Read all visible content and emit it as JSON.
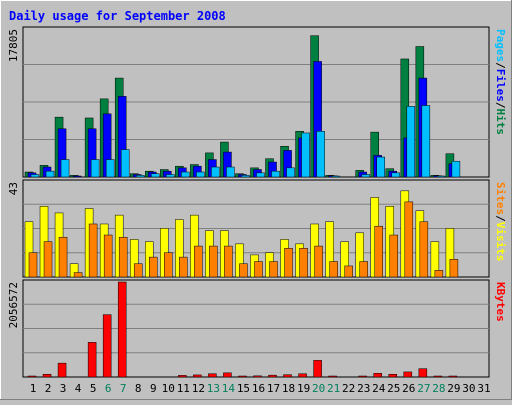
{
  "chart_data": {
    "type": "bar",
    "title": "Daily usage for September 2008",
    "categories": [
      "1",
      "2",
      "3",
      "4",
      "5",
      "6",
      "7",
      "8",
      "9",
      "10",
      "11",
      "12",
      "13",
      "14",
      "15",
      "16",
      "17",
      "18",
      "19",
      "20",
      "21",
      "22",
      "23",
      "24",
      "25",
      "26",
      "27",
      "28",
      "29",
      "30",
      "31"
    ],
    "weekend_days": [
      "6",
      "7",
      "13",
      "14",
      "20",
      "21",
      "27",
      "28"
    ],
    "panels": [
      {
        "id": "hits-files-pages",
        "ymax_label": "17805",
        "ylim": [
          0,
          17805
        ],
        "axis_label_parts": [
          {
            "text": "Pages",
            "color": "#00c0ff"
          },
          {
            "text": "/",
            "color": "#000000"
          },
          {
            "text": "Files",
            "color": "#0000ff"
          },
          {
            "text": "/",
            "color": "#000000"
          },
          {
            "text": "Hits",
            "color": "#008040"
          }
        ],
        "series": [
          {
            "name": "Hits",
            "color": "#008040",
            "values": [
              600,
              1400,
              7200,
              200,
              7100,
              9400,
              11900,
              400,
              700,
              900,
              1300,
              1500,
              2900,
              4200,
              400,
              1100,
              2200,
              3700,
              5500,
              17000,
              200,
              0,
              800,
              5400,
              1000,
              14200,
              15700,
              200,
              2800,
              0,
              0
            ]
          },
          {
            "name": "Files",
            "color": "#0000ff",
            "values": [
              500,
              1200,
              5800,
              100,
              5800,
              7600,
              9700,
              300,
              600,
              700,
              1100,
              1300,
              2100,
              3000,
              300,
              900,
              1800,
              3200,
              4700,
              13900,
              150,
              0,
              600,
              2600,
              700,
              4700,
              11900,
              150,
              1600,
              0,
              0
            ]
          },
          {
            "name": "Pages",
            "color": "#00c0ff",
            "values": [
              300,
              700,
              2100,
              0,
              2100,
              2100,
              3300,
              200,
              400,
              300,
              600,
              600,
              1200,
              1200,
              200,
              500,
              700,
              1100,
              5300,
              5500,
              100,
              0,
              300,
              2400,
              500,
              8500,
              8600,
              100,
              1900,
              0,
              0
            ]
          }
        ]
      },
      {
        "id": "visits-sites",
        "ymax_label": "43",
        "ylim": [
          0,
          43
        ],
        "axis_label_parts": [
          {
            "text": "Sites",
            "color": "#ff8000"
          },
          {
            "text": "/",
            "color": "#000000"
          },
          {
            "text": "Visits",
            "color": "#ffff00"
          }
        ],
        "series": [
          {
            "name": "Visits",
            "color": "#ffff00",
            "values": [
              25,
              32,
              29,
              6,
              31,
              24,
              28,
              17,
              16,
              22,
              26,
              28,
              21,
              21,
              15,
              10,
              11,
              17,
              15,
              24,
              25,
              16,
              20,
              36,
              32,
              39,
              30,
              16,
              22,
              0,
              0
            ]
          },
          {
            "name": "Sites",
            "color": "#ff8000",
            "values": [
              11,
              16,
              18,
              2,
              24,
              19,
              18,
              6,
              9,
              11,
              9,
              14,
              14,
              14,
              6,
              7,
              7,
              13,
              13,
              14,
              7,
              5,
              7,
              23,
              19,
              34,
              25,
              3,
              8,
              0,
              0
            ]
          }
        ]
      },
      {
        "id": "kbytes",
        "ymax_label": "2056572",
        "ylim": [
          0,
          2056572
        ],
        "axis_label_parts": [
          {
            "text": "KBytes",
            "color": "#ff0000"
          }
        ],
        "series": [
          {
            "name": "KBytes",
            "color": "#ff0000",
            "values": [
              20000,
              60000,
              300000,
              0,
              750000,
              1350000,
              2056572,
              0,
              0,
              0,
              35000,
              45000,
              70000,
              90000,
              15000,
              25000,
              40000,
              50000,
              70000,
              360000,
              15000,
              0,
              10000,
              80000,
              60000,
              110000,
              180000,
              20000,
              20000,
              0,
              0
            ]
          }
        ]
      }
    ],
    "colors": {
      "weekday_label": "#000000",
      "weekend_label": "#00805c",
      "title": "#0000ff"
    }
  }
}
